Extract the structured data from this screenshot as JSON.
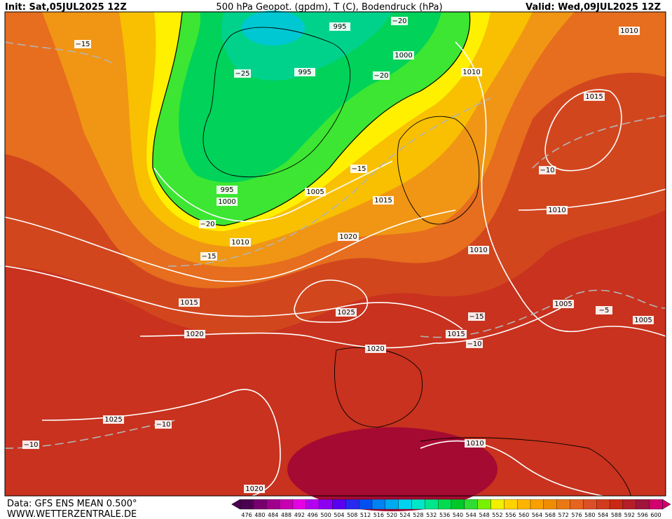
{
  "header": {
    "init": "Init: Sat,05JUL2025 12Z",
    "title": "500 hPa Geopot. (gpdm), T (C), Bodendruck (hPa)",
    "valid": "Valid: Wed,09JUL2025 12Z"
  },
  "footer": {
    "source": "Data: GFS ENS MEAN 0.500°",
    "site": "WWW.WETTERZENTRALE.DE"
  },
  "pressure_labels": [
    "995",
    "1000",
    "995",
    "1010",
    "1010",
    "1015",
    "995",
    "1000",
    "1005",
    "1015",
    "1010",
    "1020",
    "1010",
    "1010",
    "1015",
    "1025",
    "1005",
    "1005",
    "1020",
    "1015",
    "1020",
    "1025",
    "1010",
    "1020"
  ],
  "temperature_labels": [
    "−15",
    "−20",
    "−25",
    "−20",
    "−15",
    "−10",
    "−20",
    "−15",
    "−15",
    "−5",
    "−10",
    "−10",
    "−10"
  ],
  "colorbar": {
    "labels": [
      476,
      480,
      484,
      488,
      492,
      496,
      500,
      504,
      508,
      512,
      516,
      520,
      524,
      528,
      532,
      536,
      540,
      544,
      548,
      552,
      556,
      560,
      564,
      568,
      572,
      576,
      580,
      584,
      588,
      592,
      596,
      600
    ],
    "colors": [
      "#4b0050",
      "#78006e",
      "#a0008c",
      "#c800b4",
      "#e600e6",
      "#b400f0",
      "#8c00f0",
      "#5a00f0",
      "#2828f0",
      "#0050f0",
      "#0082f0",
      "#00aaf0",
      "#00d2f0",
      "#00e6c8",
      "#00e68c",
      "#00dc50",
      "#00c828",
      "#32dc32",
      "#78f000",
      "#f0f000",
      "#ffd200",
      "#ffb400",
      "#f8a000",
      "#f08c00",
      "#eb7814",
      "#e6641e",
      "#dc5028",
      "#d23c1e",
      "#c82814",
      "#b41e28",
      "#a0143c",
      "#d2006e"
    ]
  }
}
